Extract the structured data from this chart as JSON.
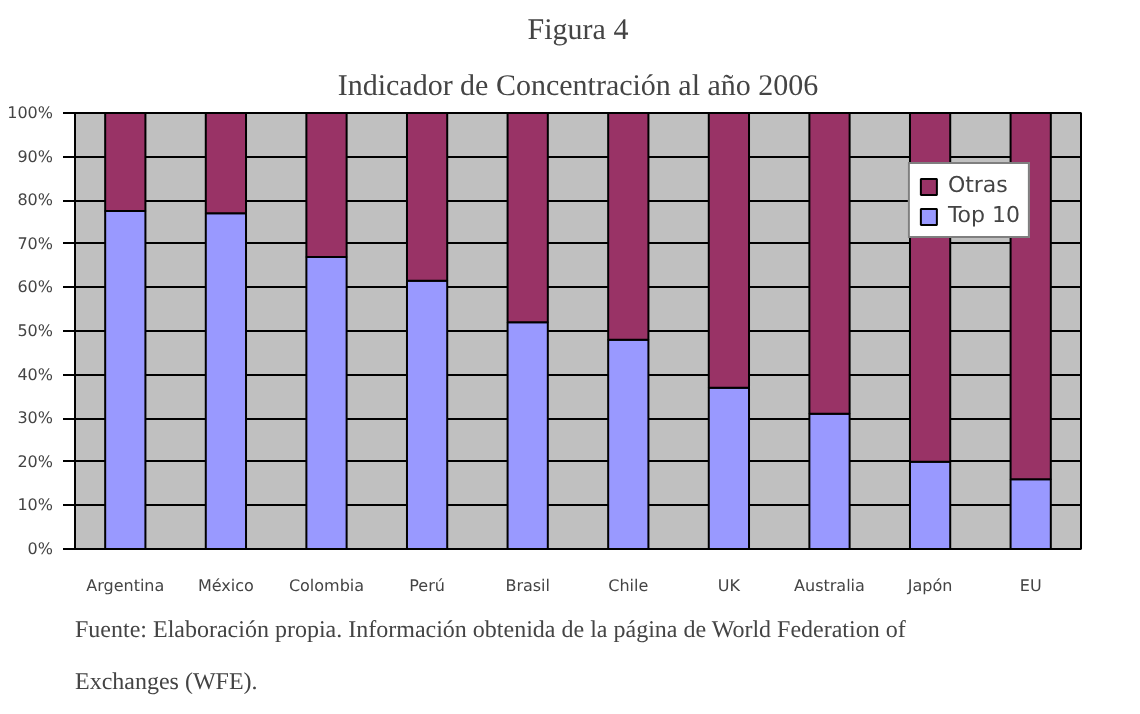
{
  "chart_data": {
    "type": "bar",
    "title": "Figura 4",
    "subtitle": "Indicador de Concentración al año 2006",
    "categories": [
      "Argentina",
      "México",
      "Colombia",
      "Perú",
      "Brasil",
      "Chile",
      "UK",
      "Australia",
      "Japón",
      "EU"
    ],
    "stacked": true,
    "series": [
      {
        "name": "Top 10",
        "color": "#9999ff",
        "values": [
          77.5,
          77,
          67,
          61.5,
          52,
          48,
          37,
          31,
          20,
          16
        ]
      },
      {
        "name": "Otras",
        "color": "#993366",
        "values": [
          22.5,
          23,
          33,
          38.5,
          48,
          52,
          63,
          69,
          80,
          84
        ]
      }
    ],
    "ylim": [
      0,
      100
    ],
    "yticks": [
      {
        "value": 0,
        "label": "0%"
      },
      {
        "value": 10,
        "label": "10%"
      },
      {
        "value": 20,
        "label": "20%"
      },
      {
        "value": 30,
        "label": "30%"
      },
      {
        "value": 40,
        "label": "40%"
      },
      {
        "value": 50,
        "label": "50%"
      },
      {
        "value": 60,
        "label": "60%"
      },
      {
        "value": 70,
        "label": "70%"
      },
      {
        "value": 80,
        "label": "80%"
      },
      {
        "value": 90,
        "label": "90%"
      },
      {
        "value": 100,
        "label": "100%"
      }
    ],
    "grid": "y",
    "legend": "top right",
    "annotations": [
      "Fuente: Elaboración propia. Información obtenida de la página de World Federation of Exchanges (WFE)."
    ]
  }
}
